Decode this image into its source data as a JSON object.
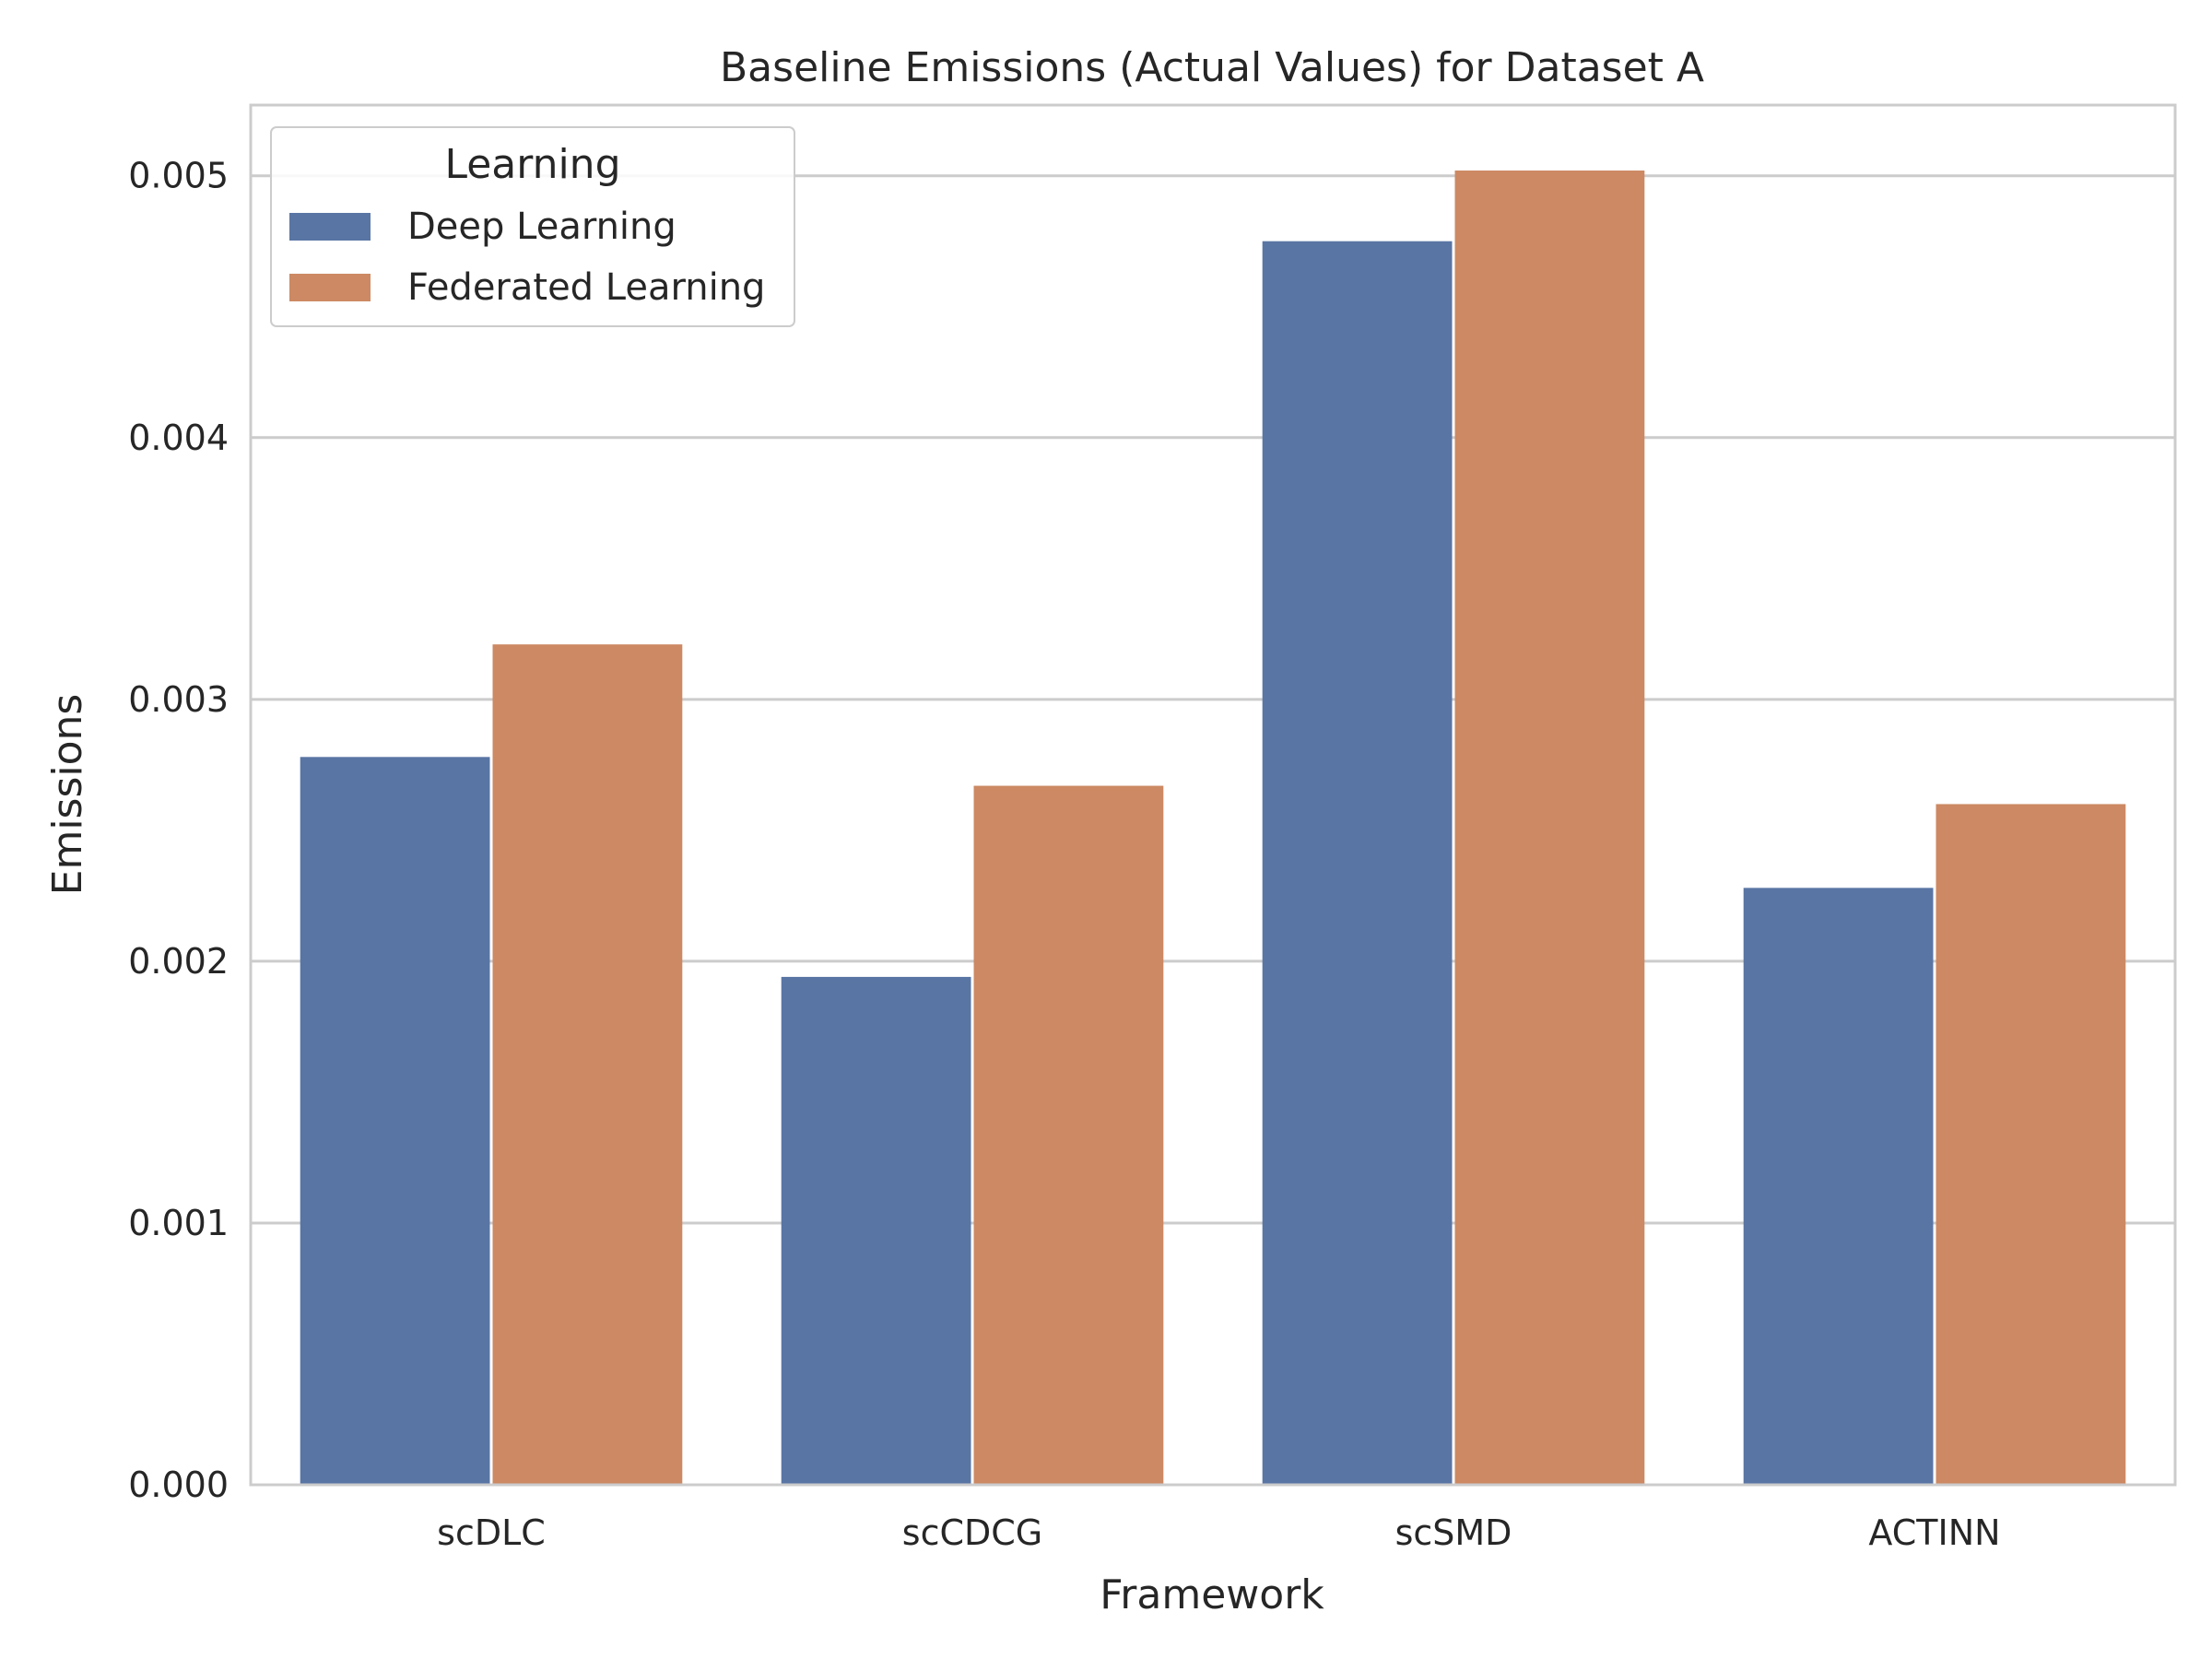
{
  "chart_data": {
    "type": "bar",
    "title": "Baseline Emissions (Actual Values) for Dataset A",
    "xlabel": "Framework",
    "ylabel": "Emissions",
    "categories": [
      "scDLC",
      "scCDCG",
      "scSMD",
      "ACTINN"
    ],
    "series": [
      {
        "name": "Deep Learning",
        "values": [
          0.00278,
          0.00194,
          0.00475,
          0.00228
        ],
        "color": "#5975a4"
      },
      {
        "name": "Federated Learning",
        "values": [
          0.00321,
          0.00267,
          0.00502,
          0.0026
        ],
        "color": "#cc8963"
      }
    ],
    "ylim": [
      0,
      0.00527
    ],
    "yticks": [
      "0.000",
      "0.001",
      "0.002",
      "0.003",
      "0.004",
      "0.005"
    ],
    "ytick_values": [
      0,
      0.001,
      0.002,
      0.003,
      0.004,
      0.005
    ],
    "grid": "horizontal",
    "legend": {
      "title": "Learning",
      "placement": "top-left"
    }
  }
}
